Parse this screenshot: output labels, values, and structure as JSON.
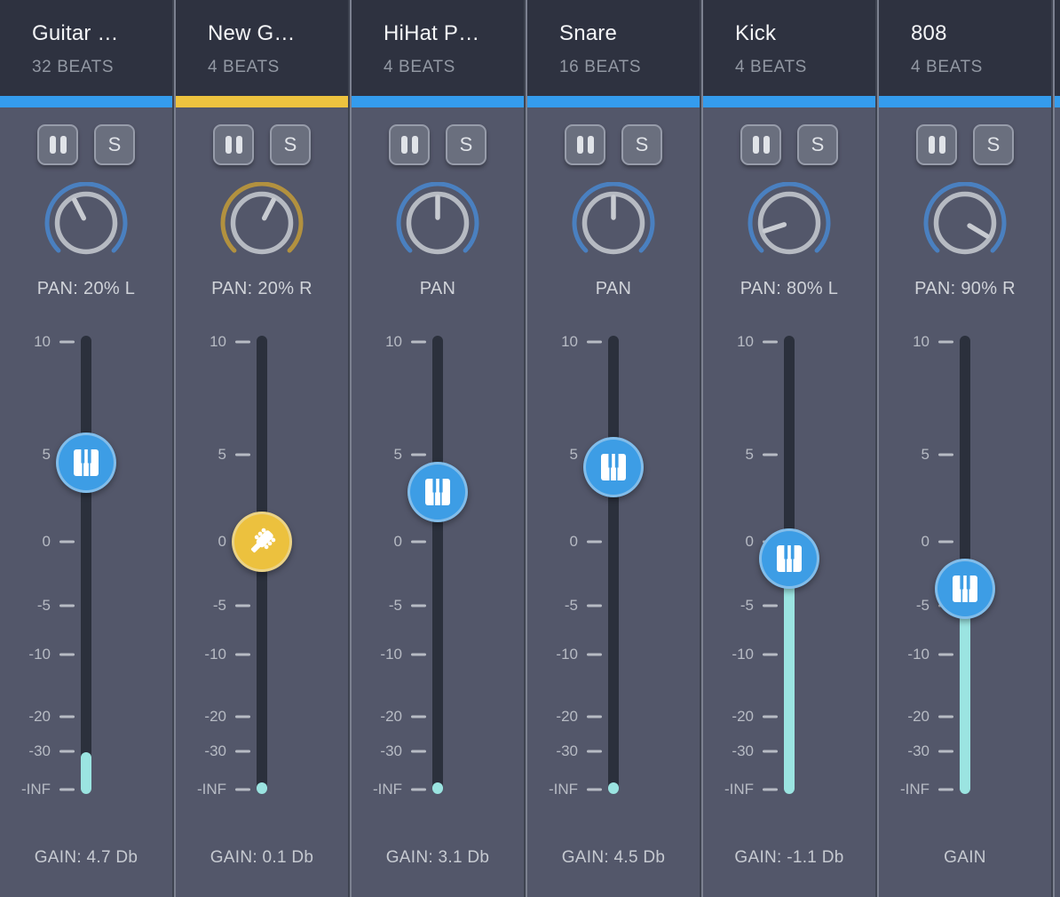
{
  "colors": {
    "accent_blue": "#349ced",
    "accent_yellow": "#eec33f",
    "knob_arc_blue": "#4a80c0",
    "knob_arc_gold": "#b2913f",
    "handle_blue": "#3d9de5",
    "handle_yellow": "#ecc13e",
    "meter_cyan": "#9be4e1",
    "header_bg": "#2e3240",
    "body_bg": "#53576a"
  },
  "controls": {
    "mute_icon": "pause-icon",
    "solo_label": "S"
  },
  "scale": [
    {
      "label": "10",
      "pct": 1.4
    },
    {
      "label": "5",
      "pct": 26.0
    },
    {
      "label": "0",
      "pct": 45.0
    },
    {
      "label": "-5",
      "pct": 58.9
    },
    {
      "label": "-10",
      "pct": 69.6
    },
    {
      "label": "-20",
      "pct": 83.1
    },
    {
      "label": "-30",
      "pct": 90.7
    },
    {
      "label": "-INF",
      "pct": 99.0
    }
  ],
  "tracks": [
    {
      "title": "Guitar …",
      "beats": "32 BEATS",
      "accent": "blue",
      "pan_label": "PAN: 20% L",
      "pan_deg": -27,
      "gain_label": "GAIN: 4.7 Db",
      "instrument": "piano",
      "handle_pct": 27.7,
      "meter_top_pct": 90.9
    },
    {
      "title": "New G…",
      "beats": "4 BEATS",
      "accent": "yellow",
      "pan_label": "PAN: 20% R",
      "pan_deg": 27,
      "gain_label": "GAIN: 0.1 Db",
      "instrument": "guitar",
      "handle_pct": 45.0,
      "meter_top_pct": 97.4
    },
    {
      "title": "HiHat P…",
      "beats": "4 BEATS",
      "accent": "blue",
      "pan_label": "PAN",
      "pan_deg": 0,
      "gain_label": "GAIN: 3.1 Db",
      "instrument": "piano",
      "handle_pct": 34.1,
      "meter_top_pct": 97.4
    },
    {
      "title": "Snare",
      "beats": "16 BEATS",
      "accent": "blue",
      "pan_label": "PAN",
      "pan_deg": 0,
      "gain_label": "GAIN: 4.5 Db",
      "instrument": "piano",
      "handle_pct": 28.7,
      "meter_top_pct": 97.4
    },
    {
      "title": "Kick",
      "beats": "4 BEATS",
      "accent": "blue",
      "pan_label": "PAN: 80% L",
      "pan_deg": -108,
      "gain_label": "GAIN: -1.1 Db",
      "instrument": "piano",
      "handle_pct": 48.6,
      "meter_top_pct": 42.0
    },
    {
      "title": "808",
      "beats": "4 BEATS",
      "accent": "blue",
      "pan_label": "PAN: 90% R",
      "pan_deg": 121,
      "gain_label": "GAIN",
      "instrument": "piano",
      "handle_pct": 55.2,
      "meter_top_pct": 49.0
    }
  ]
}
